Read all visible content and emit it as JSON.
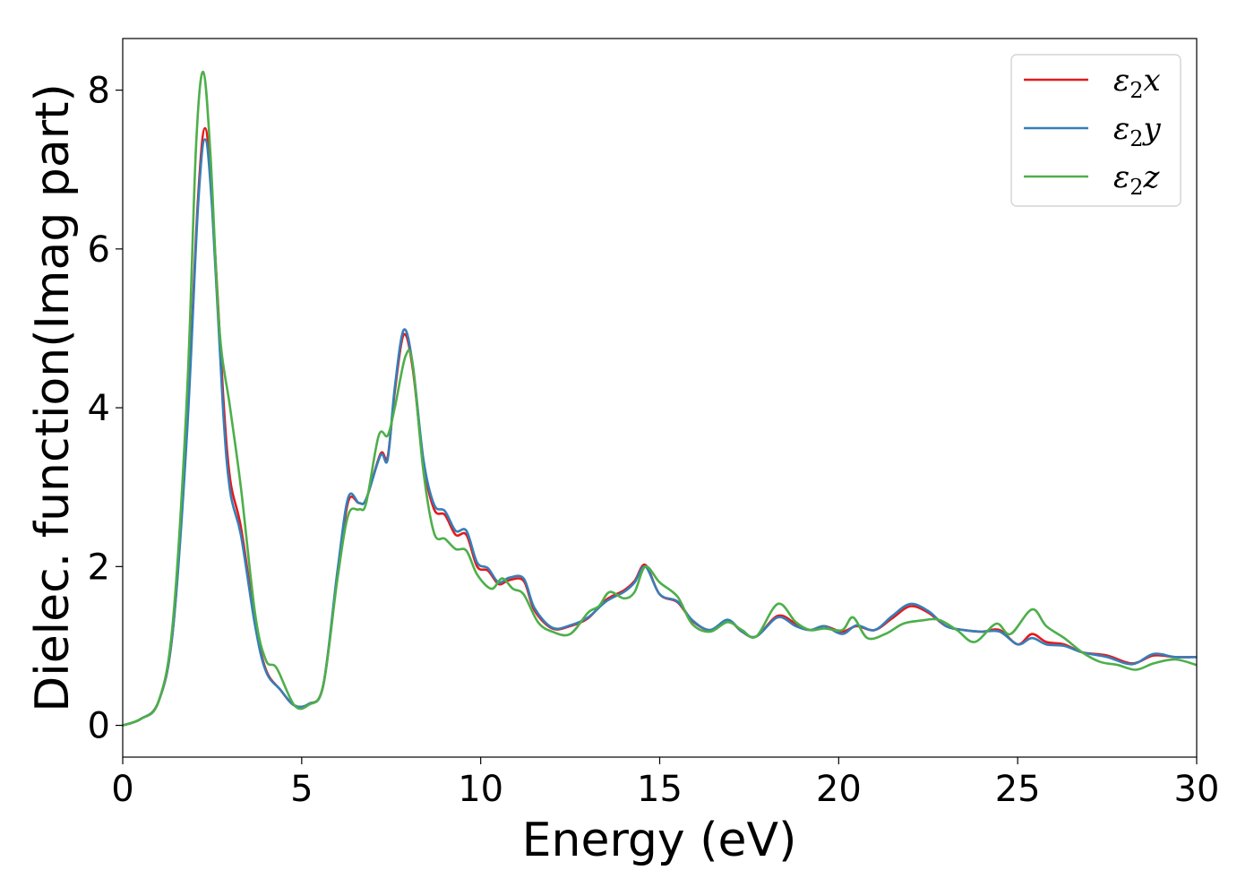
{
  "chart_data": {
    "type": "line",
    "title": "",
    "xlabel": "Energy (eV)",
    "ylabel": "Dielec. function(Imag part)",
    "xlim": [
      0,
      30
    ],
    "ylim": [
      -0.4,
      8.65
    ],
    "xticks": [
      0,
      5,
      10,
      15,
      20,
      25,
      30
    ],
    "xtick_labels": [
      "0",
      "5",
      "10",
      "15",
      "20",
      "25",
      "30"
    ],
    "yticks": [
      0,
      2,
      4,
      6,
      8
    ],
    "ytick_labels": [
      "0",
      "2",
      "4",
      "6",
      "8"
    ],
    "grid": false,
    "legend_position": "top-right",
    "series": [
      {
        "name": "ε2x",
        "legend_main": "ε",
        "legend_sub": "2",
        "legend_tail": "x",
        "color": "#e41a1c",
        "points": [
          [
            0,
            0
          ],
          [
            0.5,
            0.08
          ],
          [
            1.0,
            0.3
          ],
          [
            1.4,
            1.2
          ],
          [
            1.8,
            3.8
          ],
          [
            2.1,
            6.6
          ],
          [
            2.3,
            7.52
          ],
          [
            2.5,
            6.6
          ],
          [
            2.8,
            4.2
          ],
          [
            3.0,
            3.1
          ],
          [
            3.3,
            2.5
          ],
          [
            3.7,
            1.3
          ],
          [
            4.0,
            0.7
          ],
          [
            4.4,
            0.45
          ],
          [
            4.8,
            0.25
          ],
          [
            5.2,
            0.27
          ],
          [
            5.6,
            0.5
          ],
          [
            6.0,
            1.9
          ],
          [
            6.3,
            2.82
          ],
          [
            6.6,
            2.8
          ],
          [
            6.8,
            2.85
          ],
          [
            7.2,
            3.42
          ],
          [
            7.4,
            3.38
          ],
          [
            7.6,
            4.2
          ],
          [
            7.85,
            4.92
          ],
          [
            8.1,
            4.5
          ],
          [
            8.4,
            3.3
          ],
          [
            8.7,
            2.72
          ],
          [
            9.0,
            2.65
          ],
          [
            9.3,
            2.4
          ],
          [
            9.6,
            2.4
          ],
          [
            9.9,
            2.0
          ],
          [
            10.2,
            1.95
          ],
          [
            10.5,
            1.78
          ],
          [
            10.8,
            1.83
          ],
          [
            11.2,
            1.82
          ],
          [
            11.5,
            1.45
          ],
          [
            12.0,
            1.22
          ],
          [
            12.5,
            1.25
          ],
          [
            13.0,
            1.35
          ],
          [
            13.5,
            1.58
          ],
          [
            14.0,
            1.7
          ],
          [
            14.3,
            1.82
          ],
          [
            14.6,
            2.02
          ],
          [
            15.0,
            1.65
          ],
          [
            15.5,
            1.55
          ],
          [
            15.9,
            1.32
          ],
          [
            16.4,
            1.2
          ],
          [
            16.9,
            1.32
          ],
          [
            17.3,
            1.18
          ],
          [
            17.7,
            1.12
          ],
          [
            18.3,
            1.38
          ],
          [
            18.8,
            1.28
          ],
          [
            19.2,
            1.2
          ],
          [
            19.6,
            1.25
          ],
          [
            20.1,
            1.18
          ],
          [
            20.5,
            1.25
          ],
          [
            21.0,
            1.2
          ],
          [
            21.5,
            1.35
          ],
          [
            22.0,
            1.5
          ],
          [
            22.5,
            1.42
          ],
          [
            23.0,
            1.25
          ],
          [
            23.5,
            1.2
          ],
          [
            24.0,
            1.18
          ],
          [
            24.5,
            1.2
          ],
          [
            25.0,
            1.02
          ],
          [
            25.4,
            1.15
          ],
          [
            25.8,
            1.05
          ],
          [
            26.3,
            1.02
          ],
          [
            26.8,
            0.92
          ],
          [
            27.5,
            0.88
          ],
          [
            28.2,
            0.78
          ],
          [
            28.8,
            0.88
          ],
          [
            29.4,
            0.86
          ],
          [
            30.0,
            0.86
          ]
        ]
      },
      {
        "name": "ε2y",
        "legend_main": "ε",
        "legend_sub": "2",
        "legend_tail": "y",
        "color": "#377eb8",
        "points": [
          [
            0,
            0
          ],
          [
            0.5,
            0.08
          ],
          [
            1.0,
            0.3
          ],
          [
            1.4,
            1.2
          ],
          [
            1.8,
            3.7
          ],
          [
            2.1,
            6.5
          ],
          [
            2.3,
            7.38
          ],
          [
            2.5,
            6.5
          ],
          [
            2.8,
            4.0
          ],
          [
            3.0,
            2.95
          ],
          [
            3.3,
            2.4
          ],
          [
            3.7,
            1.25
          ],
          [
            4.0,
            0.68
          ],
          [
            4.4,
            0.45
          ],
          [
            4.8,
            0.25
          ],
          [
            5.2,
            0.27
          ],
          [
            5.6,
            0.5
          ],
          [
            6.0,
            1.95
          ],
          [
            6.3,
            2.87
          ],
          [
            6.6,
            2.8
          ],
          [
            6.8,
            2.85
          ],
          [
            7.2,
            3.4
          ],
          [
            7.4,
            3.35
          ],
          [
            7.6,
            4.25
          ],
          [
            7.85,
            4.98
          ],
          [
            8.1,
            4.55
          ],
          [
            8.4,
            3.35
          ],
          [
            8.7,
            2.78
          ],
          [
            9.0,
            2.7
          ],
          [
            9.3,
            2.45
          ],
          [
            9.6,
            2.45
          ],
          [
            9.9,
            2.05
          ],
          [
            10.2,
            1.98
          ],
          [
            10.5,
            1.8
          ],
          [
            10.8,
            1.86
          ],
          [
            11.2,
            1.85
          ],
          [
            11.5,
            1.48
          ],
          [
            12.0,
            1.23
          ],
          [
            12.5,
            1.26
          ],
          [
            13.0,
            1.36
          ],
          [
            13.5,
            1.56
          ],
          [
            14.0,
            1.68
          ],
          [
            14.3,
            1.8
          ],
          [
            14.6,
            2.0
          ],
          [
            15.0,
            1.65
          ],
          [
            15.5,
            1.56
          ],
          [
            15.9,
            1.33
          ],
          [
            16.4,
            1.2
          ],
          [
            16.9,
            1.33
          ],
          [
            17.3,
            1.18
          ],
          [
            17.7,
            1.12
          ],
          [
            18.3,
            1.36
          ],
          [
            18.8,
            1.25
          ],
          [
            19.2,
            1.2
          ],
          [
            19.6,
            1.25
          ],
          [
            20.1,
            1.15
          ],
          [
            20.5,
            1.26
          ],
          [
            21.0,
            1.2
          ],
          [
            21.5,
            1.38
          ],
          [
            22.0,
            1.53
          ],
          [
            22.5,
            1.44
          ],
          [
            23.0,
            1.25
          ],
          [
            23.5,
            1.2
          ],
          [
            24.0,
            1.18
          ],
          [
            24.5,
            1.18
          ],
          [
            25.0,
            1.02
          ],
          [
            25.4,
            1.1
          ],
          [
            25.8,
            1.02
          ],
          [
            26.3,
            1.0
          ],
          [
            26.8,
            0.92
          ],
          [
            27.5,
            0.86
          ],
          [
            28.2,
            0.77
          ],
          [
            28.8,
            0.9
          ],
          [
            29.4,
            0.86
          ],
          [
            30.0,
            0.86
          ]
        ]
      },
      {
        "name": "ε2z",
        "legend_main": "ε",
        "legend_sub": "2",
        "legend_tail": "z",
        "color": "#4daf4a",
        "points": [
          [
            0,
            0
          ],
          [
            0.5,
            0.08
          ],
          [
            1.0,
            0.3
          ],
          [
            1.4,
            1.3
          ],
          [
            1.8,
            4.2
          ],
          [
            2.05,
            7.3
          ],
          [
            2.25,
            8.23
          ],
          [
            2.45,
            7.2
          ],
          [
            2.7,
            5.0
          ],
          [
            3.0,
            4.0
          ],
          [
            3.3,
            3.0
          ],
          [
            3.7,
            1.4
          ],
          [
            4.0,
            0.82
          ],
          [
            4.3,
            0.72
          ],
          [
            4.8,
            0.25
          ],
          [
            5.2,
            0.26
          ],
          [
            5.6,
            0.5
          ],
          [
            6.0,
            1.85
          ],
          [
            6.3,
            2.65
          ],
          [
            6.6,
            2.72
          ],
          [
            6.8,
            2.8
          ],
          [
            7.15,
            3.65
          ],
          [
            7.4,
            3.65
          ],
          [
            7.6,
            4.0
          ],
          [
            7.9,
            4.65
          ],
          [
            8.1,
            4.55
          ],
          [
            8.4,
            3.2
          ],
          [
            8.7,
            2.42
          ],
          [
            9.0,
            2.35
          ],
          [
            9.3,
            2.22
          ],
          [
            9.6,
            2.2
          ],
          [
            9.9,
            1.9
          ],
          [
            10.3,
            1.72
          ],
          [
            10.6,
            1.85
          ],
          [
            10.9,
            1.72
          ],
          [
            11.2,
            1.65
          ],
          [
            11.6,
            1.3
          ],
          [
            12.0,
            1.18
          ],
          [
            12.5,
            1.15
          ],
          [
            13.0,
            1.42
          ],
          [
            13.3,
            1.5
          ],
          [
            13.6,
            1.68
          ],
          [
            14.0,
            1.6
          ],
          [
            14.3,
            1.68
          ],
          [
            14.6,
            2.0
          ],
          [
            15.0,
            1.8
          ],
          [
            15.5,
            1.62
          ],
          [
            15.9,
            1.28
          ],
          [
            16.4,
            1.18
          ],
          [
            16.9,
            1.3
          ],
          [
            17.3,
            1.2
          ],
          [
            17.7,
            1.12
          ],
          [
            18.3,
            1.53
          ],
          [
            18.8,
            1.3
          ],
          [
            19.2,
            1.2
          ],
          [
            19.6,
            1.22
          ],
          [
            20.1,
            1.2
          ],
          [
            20.4,
            1.36
          ],
          [
            20.8,
            1.1
          ],
          [
            21.3,
            1.15
          ],
          [
            21.8,
            1.28
          ],
          [
            22.3,
            1.32
          ],
          [
            22.8,
            1.33
          ],
          [
            23.3,
            1.2
          ],
          [
            23.8,
            1.05
          ],
          [
            24.4,
            1.28
          ],
          [
            24.8,
            1.15
          ],
          [
            25.4,
            1.46
          ],
          [
            25.8,
            1.25
          ],
          [
            26.3,
            1.1
          ],
          [
            26.8,
            0.92
          ],
          [
            27.3,
            0.8
          ],
          [
            27.8,
            0.76
          ],
          [
            28.3,
            0.7
          ],
          [
            28.8,
            0.78
          ],
          [
            29.4,
            0.83
          ],
          [
            30.0,
            0.76
          ]
        ]
      }
    ]
  }
}
